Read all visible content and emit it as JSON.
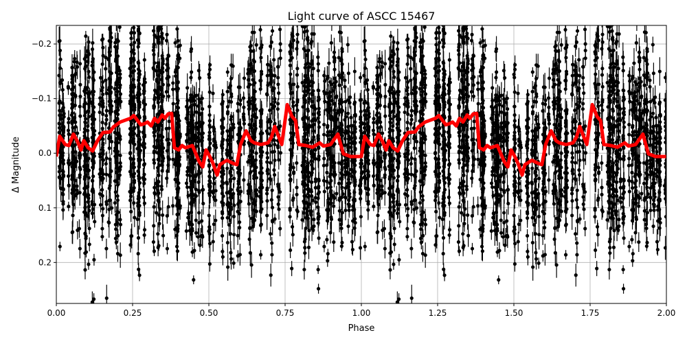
{
  "chart_data": {
    "type": "scatter",
    "title": "Light curve of ASCC 15467",
    "xlabel": "Phase",
    "ylabel": "Δ Magnitude",
    "xlim": [
      0,
      2
    ],
    "ylim": [
      0.275,
      -0.234
    ],
    "y_inverted": true,
    "grid": true,
    "x_ticks": [
      0,
      0.25,
      0.5,
      0.75,
      1,
      1.25,
      1.5,
      1.75,
      2
    ],
    "x_tick_labels": [
      "0.00",
      "0.25",
      "0.50",
      "0.75",
      "1.00",
      "1.25",
      "1.50",
      "1.75",
      "2.00"
    ],
    "y_ticks": [
      -0.2,
      -0.1,
      0,
      0.1,
      0.2
    ],
    "y_tick_labels": [
      "−0.2",
      "−0.1",
      "0.0",
      "0.1",
      "0.2"
    ],
    "series": [
      {
        "type": "errorbar-scatter",
        "color": "#000000"
      },
      {
        "type": "line",
        "color": "#ff0000",
        "x": [
          0,
          0.011,
          0.029,
          0.041,
          0.056,
          0.068,
          0.081,
          0.09,
          0.104,
          0.119,
          0.135,
          0.153,
          0.176,
          0.187,
          0.209,
          0.243,
          0.254,
          0.266,
          0.277,
          0.288,
          0.299,
          0.311,
          0.322,
          0.333,
          0.347,
          0.356,
          0.367,
          0.378,
          0.387,
          0.401,
          0.412,
          0.423,
          0.446,
          0.468,
          0.48,
          0.491,
          0.502,
          0.514,
          0.527,
          0.536,
          0.559,
          0.581,
          0.592,
          0.604,
          0.622,
          0.638,
          0.649,
          0.671,
          0.694,
          0.705,
          0.716,
          0.739,
          0.757,
          0.773,
          0.784,
          0.795,
          0.818,
          0.84,
          0.863,
          0.876,
          0.899,
          0.923,
          0.941,
          0.964,
          0.986,
          1.0
        ],
        "y": [
          0.006,
          -0.031,
          -0.016,
          -0.014,
          -0.035,
          -0.023,
          -0.006,
          -0.023,
          -0.01,
          -0.004,
          -0.023,
          -0.038,
          -0.039,
          -0.048,
          -0.057,
          -0.064,
          -0.069,
          -0.06,
          -0.052,
          -0.054,
          -0.057,
          -0.05,
          -0.064,
          -0.057,
          -0.07,
          -0.064,
          -0.072,
          -0.073,
          -0.01,
          -0.006,
          -0.014,
          -0.01,
          -0.014,
          0.015,
          0.025,
          -0.006,
          0.005,
          0.019,
          0.04,
          0.021,
          0.013,
          0.019,
          0.021,
          -0.016,
          -0.041,
          -0.023,
          -0.019,
          -0.016,
          -0.019,
          -0.029,
          -0.049,
          -0.016,
          -0.089,
          -0.067,
          -0.06,
          -0.016,
          -0.014,
          -0.011,
          -0.019,
          -0.013,
          -0.016,
          -0.035,
          0.001,
          0.006,
          0.006,
          0.006
        ]
      }
    ]
  }
}
